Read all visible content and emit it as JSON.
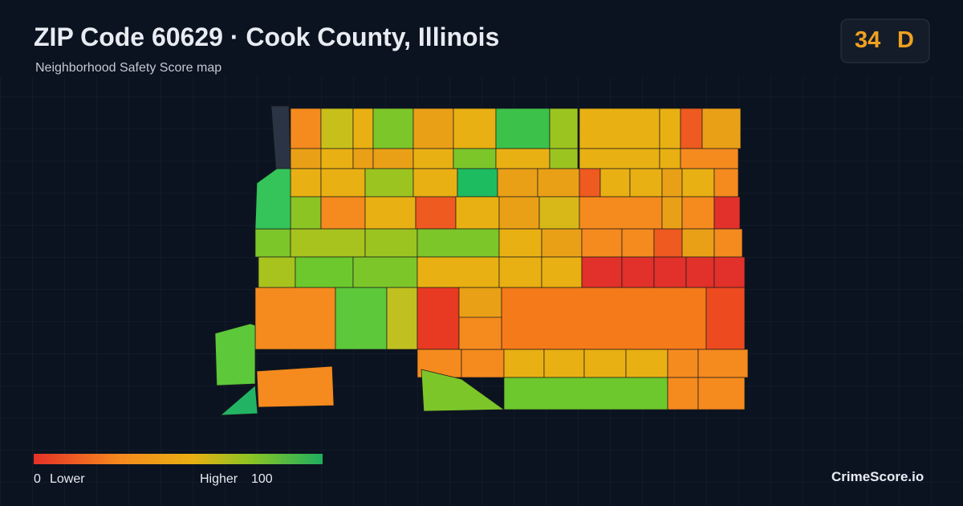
{
  "header": {
    "title": "ZIP Code 60629 · Cook County, Illinois",
    "subtitle": "Neighborhood Safety Score map"
  },
  "score": {
    "value": "34",
    "grade": "D"
  },
  "legend": {
    "min": "0",
    "min_label": "Lower",
    "max_label": "Higher",
    "max": "100"
  },
  "brand": "CrimeScore.io"
}
